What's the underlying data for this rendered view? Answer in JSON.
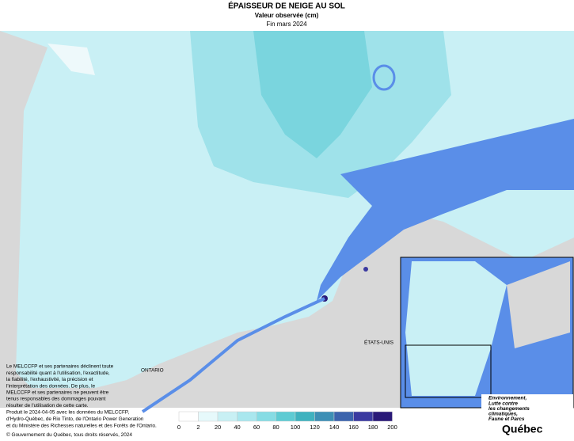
{
  "header": {
    "title": "ÉPAISSEUR DE NEIGE AU SOL",
    "subtitle": "Valeur observée (cm)",
    "date": "Fin mars 2024"
  },
  "map_labels": {
    "ontario": "ONTARIO",
    "usa": "ÉTATS-UNIS"
  },
  "disclaimer": [
    "Le MELCCFP et ses partenaires déclinent toute",
    "responsabilité quant à l'utilisation, l'exactitude,",
    "la fiabilité, l'exhaustivité, la précision et",
    "l'interprétation des données. De plus, le",
    "MELCCFP et ses partenaires ne peuvent être",
    "tenus responsables des dommages pouvant",
    "résulter de l'utilisation de cette carte."
  ],
  "footer": [
    "Produit le 2024-04-05 avec les données du MELCCFP,",
    "d'Hydro-Québec, de Rio Tinto, de l'Ontario Power Generation",
    "et du Ministère des Richesses naturelles et des Forêts de l'Ontario.",
    "© Gouvernement du Québec, tous droits réservés, 2024"
  ],
  "legend": {
    "ticks": [
      0,
      2,
      20,
      40,
      60,
      80,
      100,
      120,
      140,
      160,
      180,
      200
    ],
    "colors": [
      "#ffffff",
      "#e6f9fb",
      "#c8f0f4",
      "#a9e7ee",
      "#86dce4",
      "#5ecbd3",
      "#3fb2bf",
      "#3d8fb5",
      "#3c64ad",
      "#3b3aa0",
      "#2a1a78"
    ]
  },
  "logo": {
    "lines": [
      "Environnement,",
      "Lutte contre",
      "les changements",
      "climatiques,",
      "Faune et Parcs"
    ],
    "name": "Québec"
  }
}
